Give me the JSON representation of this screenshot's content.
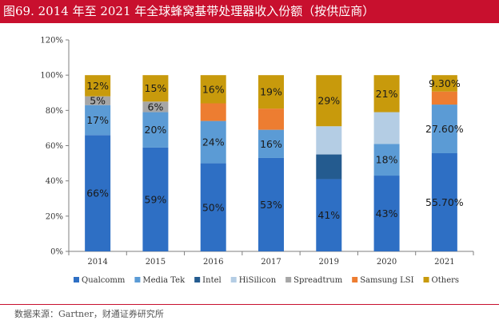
{
  "header": {
    "title": "图69. 2014 年至 2021 年全球蜂窝基带处理器收入份额（按供应商）"
  },
  "footer": {
    "source": "数据来源：Gartner，财通证券研究所"
  },
  "chart_data": {
    "type": "bar",
    "stacked": true,
    "categories": [
      "2014",
      "2015",
      "2016",
      "2017",
      "2019",
      "2020",
      "2021"
    ],
    "ylim": [
      0,
      120
    ],
    "yticks": [
      "0%",
      "20%",
      "40%",
      "60%",
      "80%",
      "100%",
      "120%"
    ],
    "grid": false,
    "legend_position": "bottom",
    "series": [
      {
        "name": "Qualcomm",
        "color": "#2e6fc4",
        "values": [
          66,
          59,
          50,
          53,
          41,
          43,
          55.7
        ],
        "labels": [
          "66%",
          "59%",
          "50%",
          "53%",
          "41%",
          "43%",
          "55.70%"
        ]
      },
      {
        "name": "Media Tek",
        "color": "#5b9bd5",
        "values": [
          17,
          20,
          24,
          16,
          0,
          18,
          27.6
        ],
        "labels": [
          "17%",
          "20%",
          "24%",
          "16%",
          "",
          "18%",
          "27.60%"
        ]
      },
      {
        "name": "Intel",
        "color": "#245b8f",
        "values": [
          0,
          0,
          0,
          0,
          14,
          0,
          0
        ],
        "labels": [
          "",
          "",
          "",
          "",
          "",
          "",
          ""
        ]
      },
      {
        "name": "HiSilicon",
        "color": "#b4cde4",
        "values": [
          0,
          0,
          0,
          0,
          16,
          18,
          0
        ],
        "labels": [
          "",
          "",
          "",
          "",
          "",
          "",
          ""
        ]
      },
      {
        "name": "Spreadtrum",
        "color": "#a6a6a6",
        "values": [
          5,
          6,
          0,
          0,
          0,
          0,
          0
        ],
        "labels": [
          "5%",
          "6%",
          "",
          "",
          "",
          "",
          ""
        ]
      },
      {
        "name": "Samsung LSI",
        "color": "#ed7d31",
        "values": [
          0,
          0,
          10,
          12,
          0,
          0,
          7.4
        ],
        "labels": [
          "",
          "",
          "",
          "",
          "",
          "",
          ""
        ]
      },
      {
        "name": "Others",
        "color": "#c89a0c",
        "values": [
          12,
          15,
          16,
          19,
          29,
          21,
          9.3
        ],
        "labels": [
          "12%",
          "15%",
          "16%",
          "19%",
          "29%",
          "21%",
          "9.30%"
        ]
      }
    ]
  }
}
